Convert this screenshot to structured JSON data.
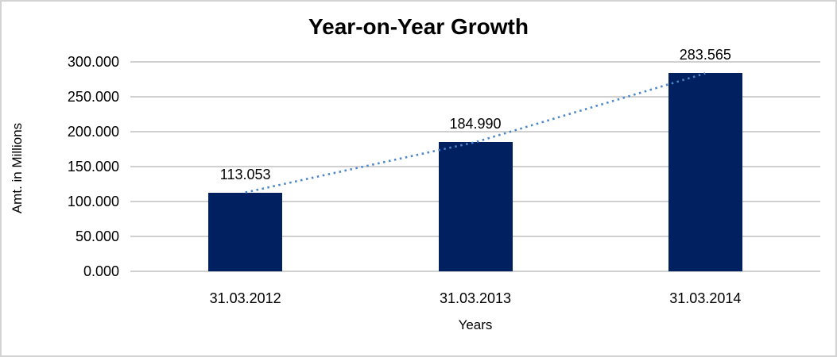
{
  "chart_data": {
    "type": "bar",
    "title": "Year-on-Year Growth",
    "categories": [
      "31.03.2012",
      "31.03.2013",
      "31.03.2014"
    ],
    "values": [
      113.053,
      184.99,
      283.565
    ],
    "data_labels": [
      "113.053",
      "184.990",
      "283.565"
    ],
    "xlabel": "Years",
    "ylabel": "Amt. in Millions",
    "ylim": [
      0,
      300
    ],
    "ytick_step": 50,
    "ytick_labels": [
      "0.000",
      "50.000",
      "100.000",
      "150.000",
      "200.000",
      "250.000",
      "300.000"
    ],
    "grid": true,
    "legend_position": "none",
    "trendline": {
      "style": "dotted",
      "color": "#4a86c8",
      "through_values": [
        113.053,
        184.99,
        283.565
      ]
    },
    "colors": {
      "bar": "#002060",
      "gridline": "#d0d0d0",
      "frame_border": "#d3d3d3",
      "text": "#000000",
      "background": "#ffffff"
    }
  }
}
